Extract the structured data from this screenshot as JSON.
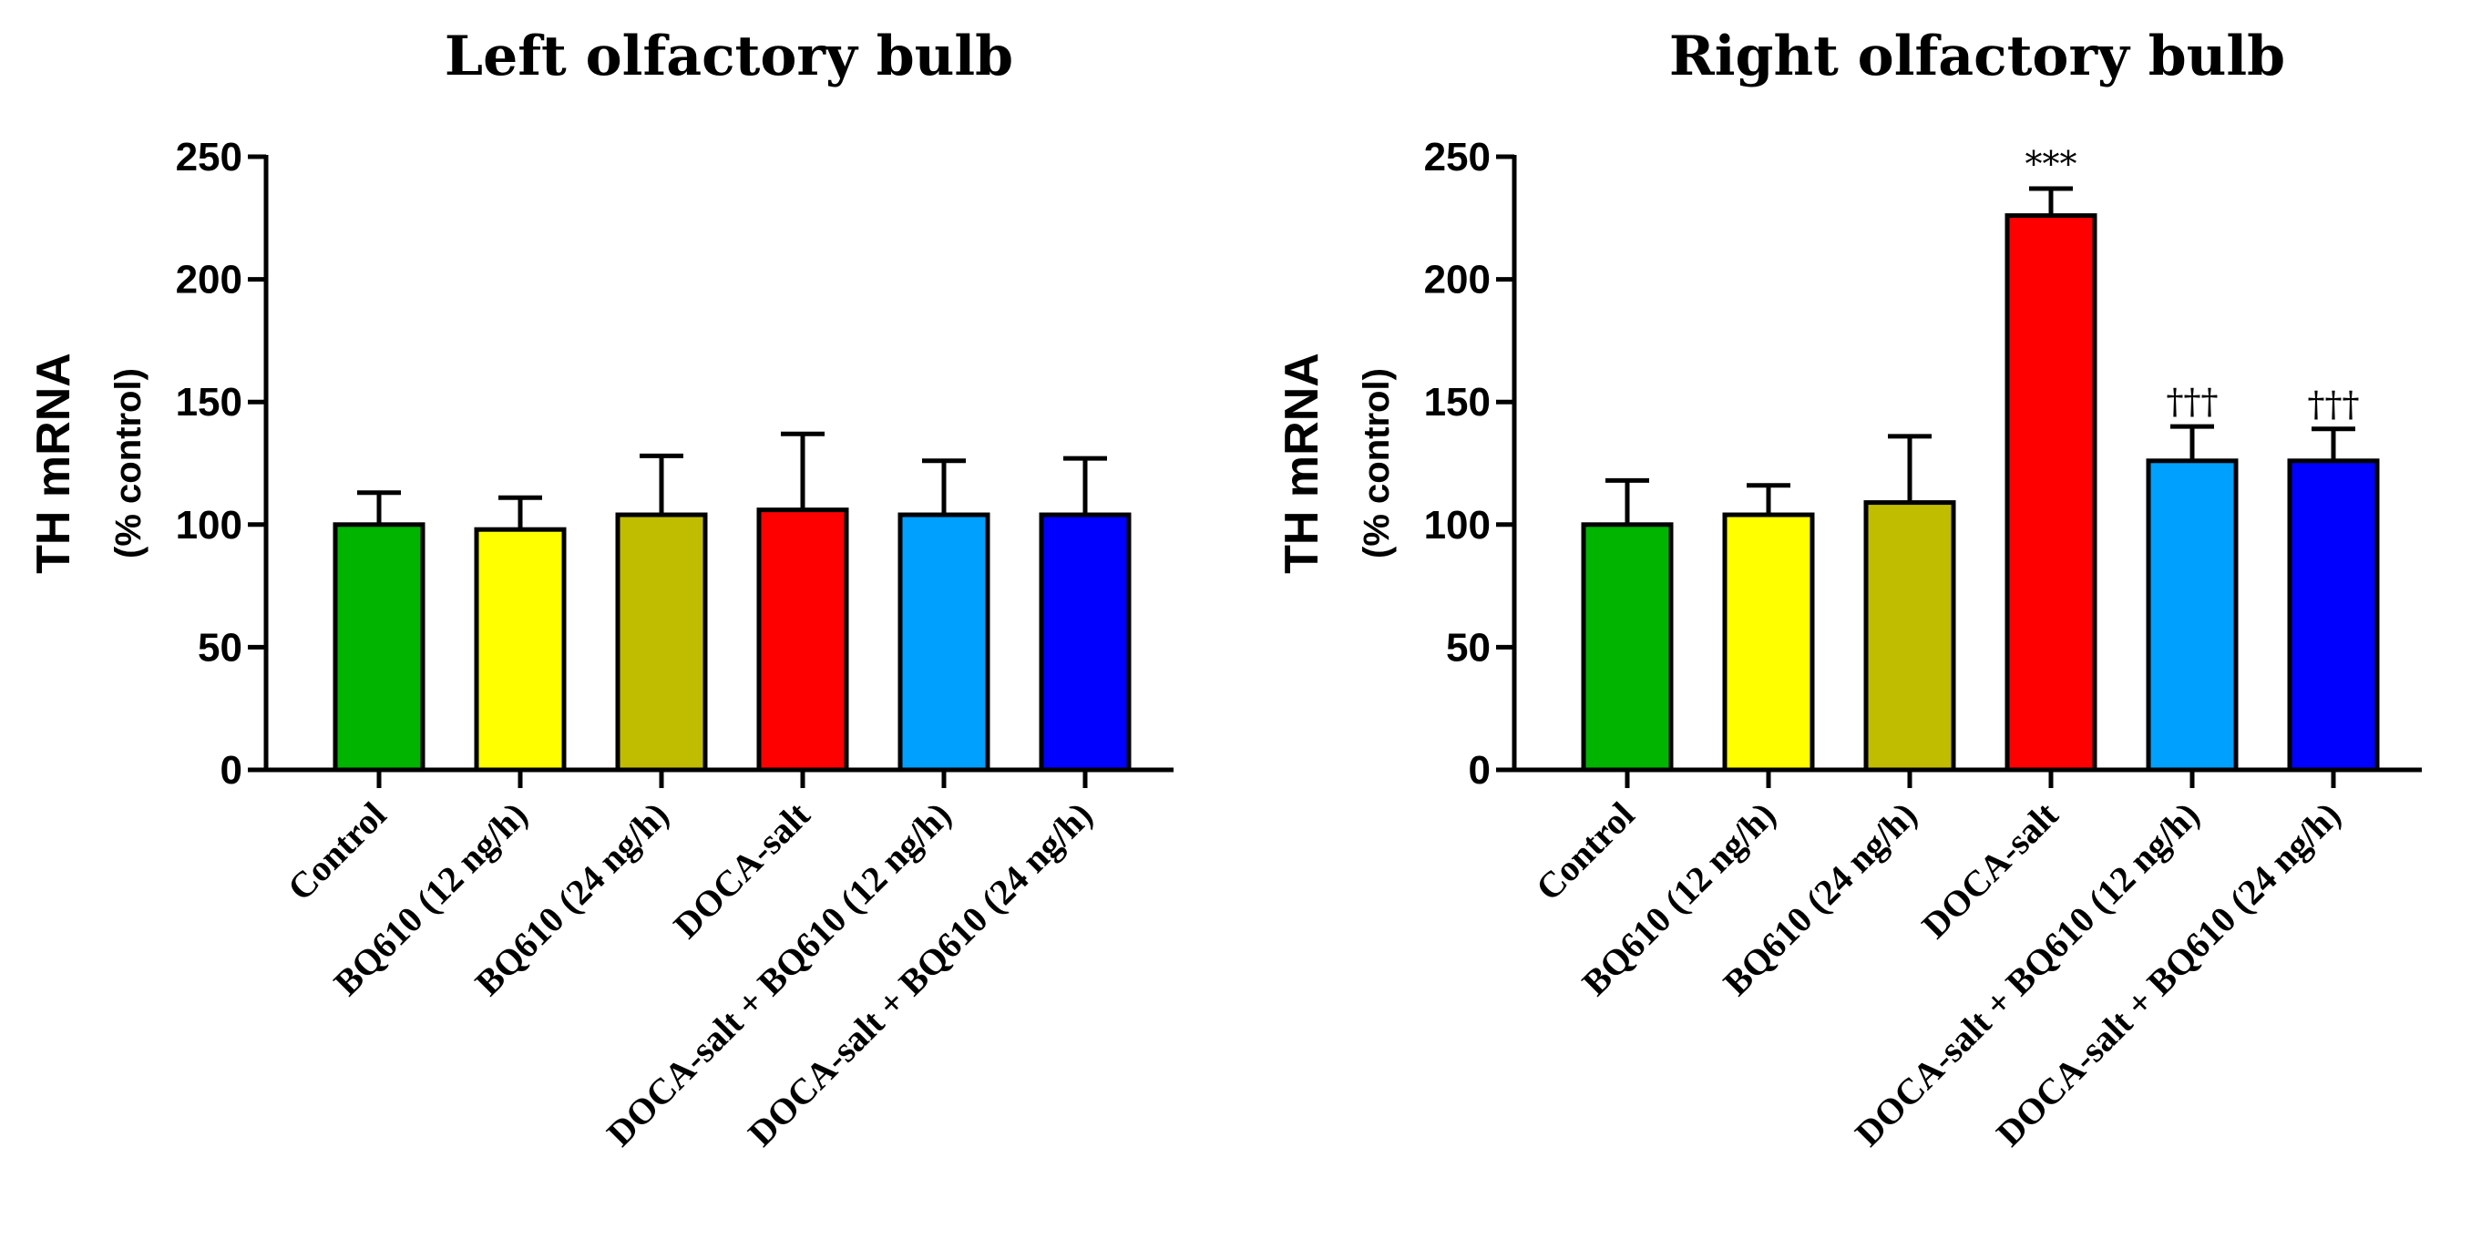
{
  "chart_data": [
    {
      "type": "bar",
      "title": "Left olfactory bulb",
      "ylabel": "TH mRNA",
      "ylabel_sub": "(% control)",
      "ylim": [
        0,
        250
      ],
      "yticks": [
        0,
        50,
        100,
        150,
        200,
        250
      ],
      "categories": [
        "Control",
        "BQ610 (12 ng/h)",
        "BQ610 (24 ng/h)",
        "DOCA-salt",
        "DOCA-salt + BQ610 (12 ng/h)",
        "DOCA-salt + BQ610 (24 ng/h)"
      ],
      "values": [
        100,
        98,
        104,
        106,
        104,
        104
      ],
      "errors": [
        13,
        13,
        24,
        31,
        22,
        23
      ],
      "colors": [
        "#00b400",
        "#ffff00",
        "#c0bc00",
        "#ff0000",
        "#00a0ff",
        "#0000ff"
      ],
      "annotations": [
        "",
        "",
        "",
        "",
        "",
        ""
      ]
    },
    {
      "type": "bar",
      "title": "Right olfactory bulb",
      "ylabel": "TH mRNA",
      "ylabel_sub": "(% control)",
      "ylim": [
        0,
        250
      ],
      "yticks": [
        0,
        50,
        100,
        150,
        200,
        250
      ],
      "categories": [
        "Control",
        "BQ610 (12 ng/h)",
        "BQ610 (24 ng/h)",
        "DOCA-salt",
        "DOCA-salt + BQ610 (12 ng/h)",
        "DOCA-salt + BQ610 (24 ng/h)"
      ],
      "values": [
        100,
        104,
        109,
        226,
        126,
        126
      ],
      "errors": [
        18,
        12,
        27,
        11,
        14,
        13
      ],
      "colors": [
        "#00b400",
        "#ffff00",
        "#c0bc00",
        "#ff0000",
        "#00a0ff",
        "#0000ff"
      ],
      "annotations": [
        "",
        "",
        "",
        "***",
        "†††",
        "†††"
      ]
    }
  ]
}
